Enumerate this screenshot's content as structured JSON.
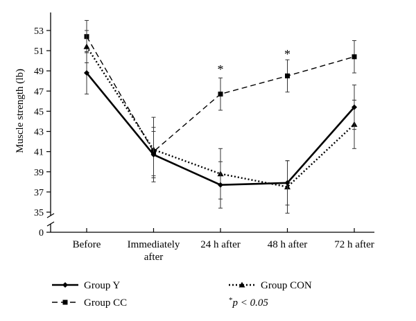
{
  "chart_data": {
    "type": "line",
    "ylabel": "Muscle strength (lb)",
    "yticks": [
      53,
      51,
      49,
      47,
      45,
      43,
      41,
      39,
      37,
      35
    ],
    "ybottom_tick": 0,
    "axis_break": true,
    "ylim": [
      35,
      54
    ],
    "categories": [
      "Before",
      "Immediately after",
      "24 h after",
      "48 h after",
      "72 h after"
    ],
    "category_lines": [
      [
        "Before"
      ],
      [
        "Immediately",
        "after"
      ],
      [
        "24 h after"
      ],
      [
        "48 h after"
      ],
      [
        "72 h after"
      ]
    ],
    "series": [
      {
        "name": "Group Y",
        "values": [
          48.8,
          40.7,
          37.7,
          37.9,
          45.4
        ],
        "errors": [
          2.1,
          2.3,
          2.3,
          2.2,
          2.2
        ],
        "style": "solid",
        "marker": "diamond",
        "color": "#000000"
      },
      {
        "name": "Group CC",
        "values": [
          52.4,
          41.0,
          46.7,
          48.5,
          50.4
        ],
        "errors": [
          1.6,
          2.4,
          1.6,
          1.6,
          1.6
        ],
        "style": "dashed",
        "marker": "square",
        "color": "#000000"
      },
      {
        "name": "Group CON",
        "values": [
          51.4,
          41.2,
          38.8,
          37.5,
          43.7
        ],
        "errors": [
          1.6,
          3.2,
          2.5,
          2.6,
          2.4
        ],
        "style": "dotted",
        "marker": "triangle",
        "color": "#000000"
      }
    ],
    "annotations": [
      {
        "category": "24 h after",
        "text": "*",
        "value": 49.3
      },
      {
        "category": "48 h after",
        "text": "*",
        "value": 50.8
      }
    ],
    "legend": {
      "placement": "bottom",
      "footnote_star": "*",
      "footnote_text": "p < 0.05"
    },
    "grid": false
  }
}
